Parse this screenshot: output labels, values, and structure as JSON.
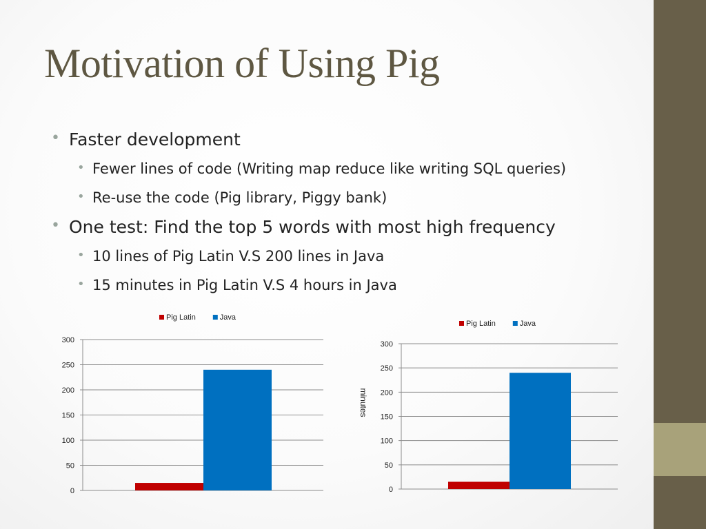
{
  "slide": {
    "title": "Motivation of Using Pig",
    "bullets": [
      {
        "level": 1,
        "text": "Faster development"
      },
      {
        "level": 2,
        "text": "Fewer lines of code (Writing map reduce like writing SQL queries)"
      },
      {
        "level": 2,
        "text": "Re-use the code (Pig library, Piggy bank)"
      },
      {
        "level": 1,
        "text": "One test: Find the top 5 words with most high frequency"
      },
      {
        "level": 2,
        "text": "10 lines of Pig Latin V.S 200 lines in Java"
      },
      {
        "level": 2,
        "text": "15 minutes in Pig Latin V.S 4 hours in Java"
      }
    ],
    "bullet_glyph": "•",
    "colors": {
      "title": "#5e5742",
      "side_band": "#685f49",
      "side_accent": "#a8a27a",
      "bullet_dot": "#99a59d"
    }
  },
  "chart_data": [
    {
      "type": "bar",
      "categories": [
        ""
      ],
      "series": [
        {
          "name": "Pig Latin",
          "values": [
            15
          ],
          "color": "#c00000"
        },
        {
          "name": "Java",
          "values": [
            240
          ],
          "color": "#0070c0"
        }
      ],
      "ylim": [
        0,
        300
      ],
      "yticks": [
        0,
        50,
        100,
        150,
        200,
        250,
        300
      ],
      "ylabel": "",
      "xlabel": "",
      "grid": true,
      "legend": "top"
    },
    {
      "type": "bar",
      "categories": [
        ""
      ],
      "series": [
        {
          "name": "Pig Latin",
          "values": [
            15
          ],
          "color": "#c00000"
        },
        {
          "name": "Java",
          "values": [
            240
          ],
          "color": "#0070c0"
        }
      ],
      "ylim": [
        0,
        300
      ],
      "yticks": [
        0,
        50,
        100,
        150,
        200,
        250,
        300
      ],
      "ylabel": "minutes",
      "xlabel": "",
      "grid": true,
      "legend": "top"
    }
  ]
}
